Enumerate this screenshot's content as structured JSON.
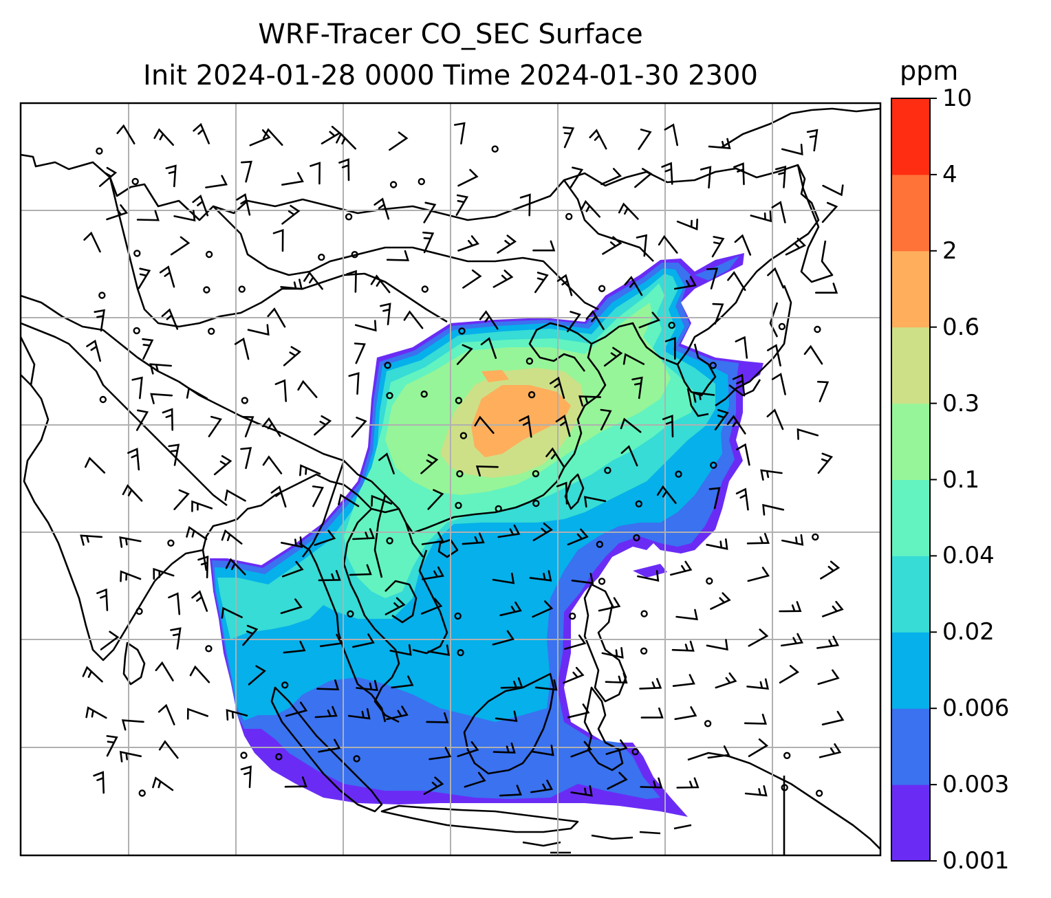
{
  "title": {
    "line1": "WRF-Tracer CO_SEC Surface",
    "line2": "Init 2024-01-28 0000 Time 2024-01-30 2300"
  },
  "colorbar": {
    "unit": "ppm",
    "levels": [
      "0.001",
      "0.003",
      "0.006",
      "0.02",
      "0.04",
      "0.1",
      "0.3",
      "0.6",
      "2",
      "4",
      "10"
    ],
    "colors": [
      "#6a2cf5",
      "#3a72f0",
      "#06b0ea",
      "#36dcd5",
      "#62f3c0",
      "#96f598",
      "#cde087",
      "#ffae5c",
      "#ff7238",
      "#ff2d12"
    ]
  },
  "map": {
    "type": "tracer concentration with wind barbs",
    "land_color": "#ffffff",
    "coastline_color": "#000000",
    "gridline_color": "#b0b0b0"
  }
}
